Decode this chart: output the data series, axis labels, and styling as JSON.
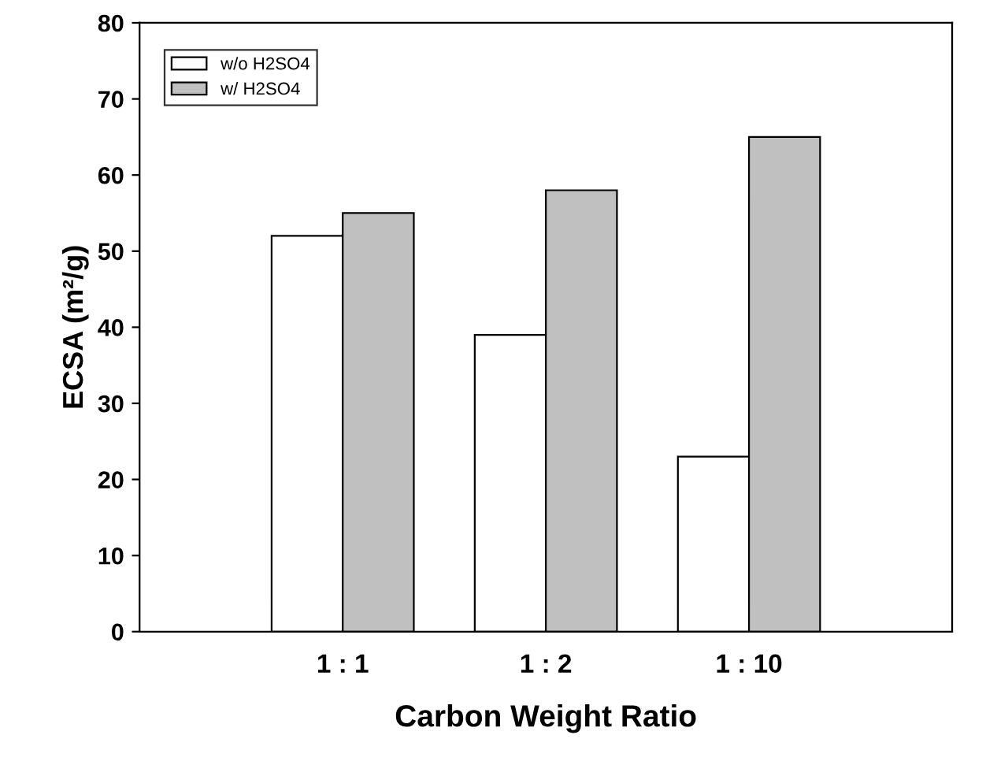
{
  "chart_data": {
    "type": "bar",
    "xlabel": "Carbon Weight Ratio",
    "ylabel": "ECSA (m²/g)",
    "categories": [
      "1 : 1",
      "1 : 2",
      "1 : 10"
    ],
    "series": [
      {
        "name": "w/o H2SO4",
        "color": "#ffffff",
        "values": [
          52,
          39,
          23
        ]
      },
      {
        "name": "w/ H2SO4",
        "color": "#c0c0c0",
        "values": [
          55,
          58,
          65
        ]
      }
    ],
    "ylim": [
      0,
      80
    ],
    "yticks": [
      0,
      10,
      20,
      30,
      40,
      50,
      60,
      70,
      80
    ],
    "grid": false,
    "legend": "top left"
  }
}
